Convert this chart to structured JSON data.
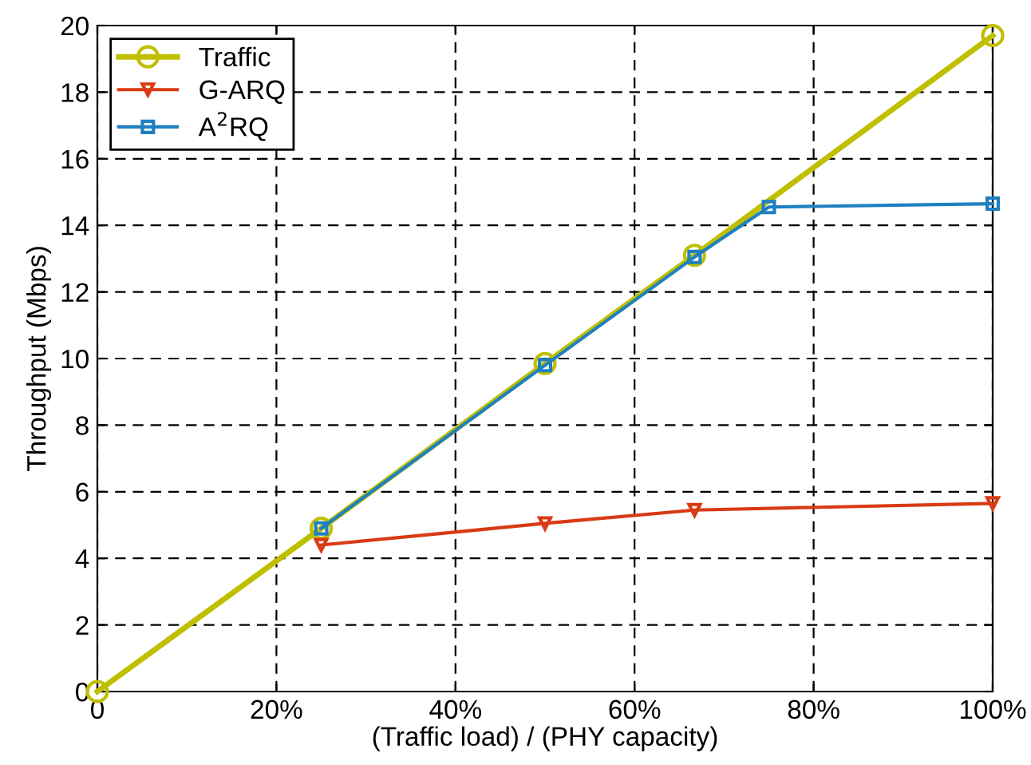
{
  "chart_data": {
    "type": "line",
    "xlabel": "(Traffic load) / (PHY capacity)",
    "ylabel": "Throughput (Mbps)",
    "xlim": [
      0,
      100
    ],
    "ylim": [
      0,
      20
    ],
    "xticks": [
      0,
      {
        "value": 20,
        "label": "20%"
      },
      {
        "value": 40,
        "label": "40%"
      },
      {
        "value": 60,
        "label": "60%"
      },
      {
        "value": 80,
        "label": "80%"
      },
      {
        "value": 100,
        "label": "100%"
      }
    ],
    "yticks": [
      0,
      2,
      4,
      6,
      8,
      10,
      12,
      14,
      16,
      18,
      20
    ],
    "grid": true,
    "legend": "top left",
    "line_style": "solid",
    "series": [
      {
        "name": "Traffic",
        "color": "#bfbf00",
        "marker": "circle",
        "x": [
          0,
          25,
          50,
          66.7,
          100
        ],
        "values": [
          0,
          4.9,
          9.85,
          13.1,
          19.7
        ]
      },
      {
        "name": "G-ARQ",
        "color": "#d93a14",
        "marker": "triangle",
        "x": [
          25,
          50,
          66.7,
          100
        ],
        "values": [
          4.4,
          5.05,
          5.45,
          5.65
        ]
      },
      {
        "name": "A$^{2}$RQ",
        "color": "#1f80c0",
        "marker": "square",
        "x": [
          25,
          50,
          66.7,
          75,
          100
        ],
        "values": [
          4.9,
          9.8,
          13.05,
          14.55,
          14.65
        ]
      }
    ]
  }
}
